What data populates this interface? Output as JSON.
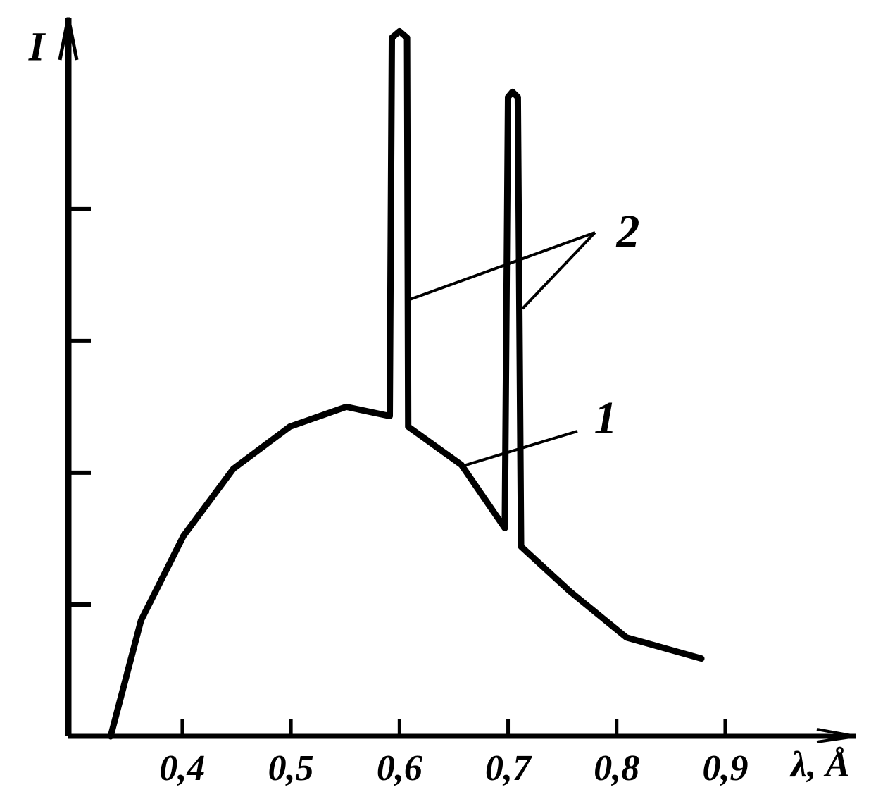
{
  "chart_data": {
    "type": "line",
    "xlabel": "λ, Å",
    "ylabel": "I",
    "x": [
      0.334,
      0.362,
      0.401,
      0.447,
      0.499,
      0.551,
      0.591,
      0.593,
      0.6,
      0.607,
      0.608,
      0.657,
      0.697,
      0.7,
      0.704,
      0.709,
      0.712,
      0.757,
      0.809,
      0.878
    ],
    "series": [
      {
        "color": "#000000",
        "values": [
          0,
          0.88,
          1.52,
          2.03,
          2.35,
          2.5,
          2.43,
          5.3,
          5.35,
          5.3,
          2.35,
          2.06,
          1.58,
          4.85,
          4.89,
          4.85,
          1.44,
          1.1,
          0.75,
          0.59
        ]
      }
    ],
    "xlim": [
      0.295,
      1.02
    ],
    "xticks": [
      {
        "value": 0.4,
        "label": "0,4"
      },
      {
        "value": 0.5,
        "label": "0,5"
      },
      {
        "value": 0.6,
        "label": "0,6"
      },
      {
        "value": 0.7,
        "label": "0,7"
      },
      {
        "value": 0.8,
        "label": "0,8"
      },
      {
        "value": 0.9,
        "label": "0,9"
      }
    ],
    "ylim": [
      0,
      5.4
    ],
    "yticks": [
      1,
      2,
      3,
      4
    ],
    "ytick_labels": false,
    "grid": false,
    "annotations": [
      {
        "text": "1"
      },
      {
        "text": "2"
      }
    ]
  }
}
